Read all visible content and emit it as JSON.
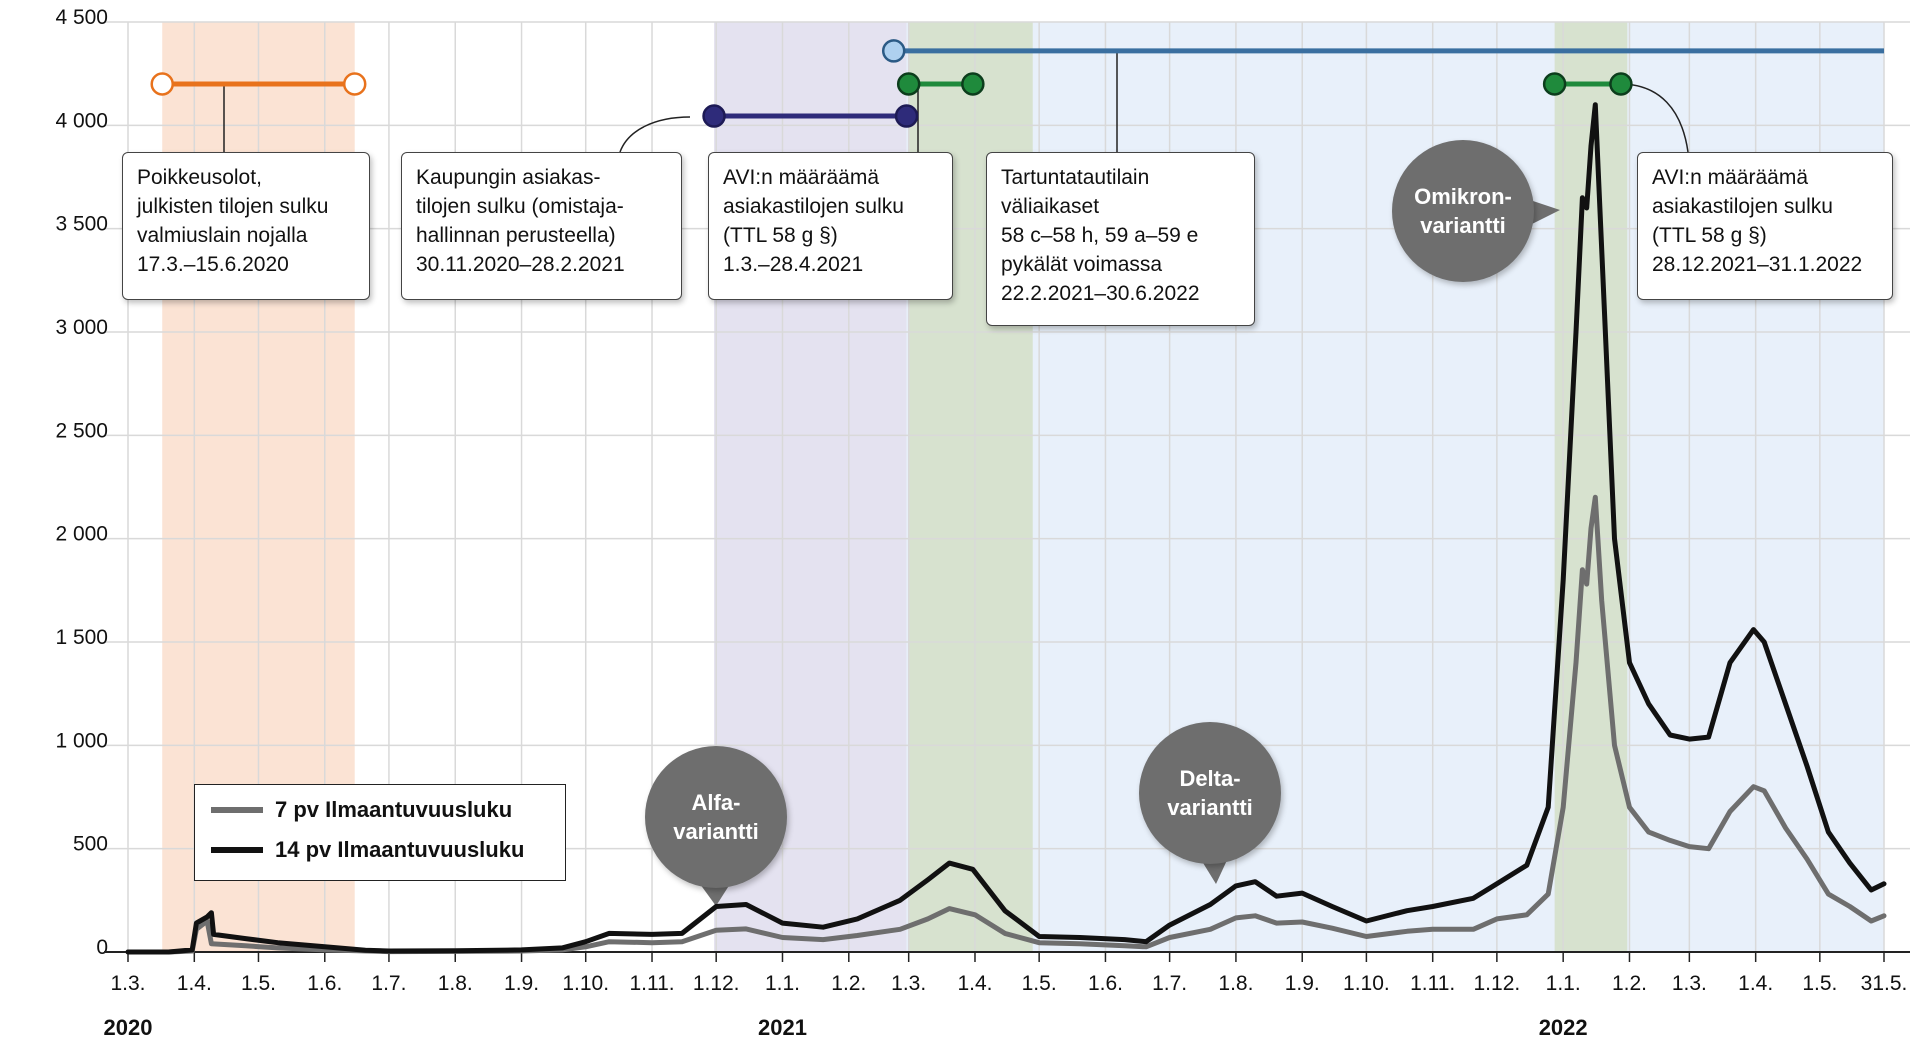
{
  "chart_data": {
    "type": "line",
    "title": "",
    "xlabel": "",
    "ylabel": "",
    "ylim": [
      0,
      4500
    ],
    "y_ticks": [
      "0",
      "500",
      "1 000",
      "1 500",
      "2 000",
      "2 500",
      "3 000",
      "3 500",
      "4 000",
      "4 500"
    ],
    "x_range": [
      "2020-03-01",
      "2022-05-31"
    ],
    "x_tick_dates": [
      "2020-03-01",
      "2020-04-01",
      "2020-05-01",
      "2020-06-01",
      "2020-07-01",
      "2020-08-01",
      "2020-09-01",
      "2020-10-01",
      "2020-11-01",
      "2020-12-01",
      "2021-01-01",
      "2021-02-01",
      "2021-03-01",
      "2021-04-01",
      "2021-05-01",
      "2021-06-01",
      "2021-07-01",
      "2021-08-01",
      "2021-09-01",
      "2021-10-01",
      "2021-11-01",
      "2021-12-01",
      "2022-01-01",
      "2022-02-01",
      "2022-03-01",
      "2022-04-01",
      "2022-05-01",
      "2022-05-31"
    ],
    "x_tick_labels": [
      "1.3.",
      "1.4.",
      "1.5.",
      "1.6.",
      "1.7.",
      "1.8.",
      "1.9.",
      "1.10.",
      "1.11.",
      "1.12.",
      "1.1.",
      "1.2.",
      "1.3.",
      "1.4.",
      "1.5.",
      "1.6.",
      "1.7.",
      "1.8.",
      "1.9.",
      "1.10.",
      "1.11.",
      "1.12.",
      "1.1.",
      "1.2.",
      "1.3.",
      "1.4.",
      "1.5.",
      "31.5."
    ],
    "year_labels": [
      {
        "date": "2020-03-01",
        "label": "2020"
      },
      {
        "date": "2021-01-01",
        "label": "2021"
      },
      {
        "date": "2022-01-01",
        "label": "2022"
      }
    ],
    "grid": true,
    "legend_position": "bottom-left",
    "series": [
      {
        "name": "7 pv Ilmaantuvuusluku",
        "color": "#6e6e6e",
        "points": [
          [
            "2020-03-01",
            0
          ],
          [
            "2020-03-20",
            0
          ],
          [
            "2020-03-31",
            5
          ],
          [
            "2020-04-02",
            110
          ],
          [
            "2020-04-07",
            150
          ],
          [
            "2020-04-09",
            40
          ],
          [
            "2020-04-25",
            30
          ],
          [
            "2020-05-10",
            20
          ],
          [
            "2020-06-01",
            10
          ],
          [
            "2020-07-01",
            2
          ],
          [
            "2020-08-01",
            3
          ],
          [
            "2020-09-01",
            5
          ],
          [
            "2020-09-20",
            10
          ],
          [
            "2020-10-01",
            25
          ],
          [
            "2020-10-12",
            50
          ],
          [
            "2020-11-01",
            45
          ],
          [
            "2020-11-15",
            50
          ],
          [
            "2020-12-01",
            105
          ],
          [
            "2020-12-15",
            112
          ],
          [
            "2021-01-01",
            70
          ],
          [
            "2021-01-20",
            60
          ],
          [
            "2021-02-05",
            80
          ],
          [
            "2021-02-25",
            110
          ],
          [
            "2021-03-10",
            160
          ],
          [
            "2021-03-20",
            210
          ],
          [
            "2021-04-01",
            180
          ],
          [
            "2021-04-15",
            90
          ],
          [
            "2021-05-01",
            45
          ],
          [
            "2021-05-20",
            40
          ],
          [
            "2021-06-10",
            30
          ],
          [
            "2021-06-20",
            25
          ],
          [
            "2021-07-01",
            70
          ],
          [
            "2021-07-20",
            110
          ],
          [
            "2021-08-01",
            165
          ],
          [
            "2021-08-10",
            175
          ],
          [
            "2021-08-20",
            140
          ],
          [
            "2021-09-01",
            145
          ],
          [
            "2021-09-15",
            115
          ],
          [
            "2021-10-01",
            75
          ],
          [
            "2021-10-20",
            100
          ],
          [
            "2021-11-01",
            110
          ],
          [
            "2021-11-20",
            110
          ],
          [
            "2021-12-01",
            160
          ],
          [
            "2021-12-15",
            180
          ],
          [
            "2021-12-25",
            280
          ],
          [
            "2022-01-01",
            700
          ],
          [
            "2022-01-07",
            1400
          ],
          [
            "2022-01-10",
            1850
          ],
          [
            "2022-01-12",
            1780
          ],
          [
            "2022-01-14",
            2050
          ],
          [
            "2022-01-16",
            2200
          ],
          [
            "2022-01-19",
            1700
          ],
          [
            "2022-01-25",
            1000
          ],
          [
            "2022-02-01",
            700
          ],
          [
            "2022-02-10",
            580
          ],
          [
            "2022-02-20",
            540
          ],
          [
            "2022-03-01",
            510
          ],
          [
            "2022-03-10",
            500
          ],
          [
            "2022-03-20",
            680
          ],
          [
            "2022-03-31",
            800
          ],
          [
            "2022-04-05",
            780
          ],
          [
            "2022-04-15",
            600
          ],
          [
            "2022-04-25",
            450
          ],
          [
            "2022-05-05",
            280
          ],
          [
            "2022-05-15",
            220
          ],
          [
            "2022-05-25",
            150
          ],
          [
            "2022-05-31",
            175
          ]
        ]
      },
      {
        "name": "14 pv Ilmaantuvuusluku",
        "color": "#111111",
        "points": [
          [
            "2020-03-01",
            0
          ],
          [
            "2020-03-20",
            0
          ],
          [
            "2020-03-31",
            10
          ],
          [
            "2020-04-02",
            140
          ],
          [
            "2020-04-07",
            170
          ],
          [
            "2020-04-09",
            190
          ],
          [
            "2020-04-10",
            85
          ],
          [
            "2020-04-25",
            65
          ],
          [
            "2020-05-10",
            45
          ],
          [
            "2020-06-01",
            25
          ],
          [
            "2020-06-20",
            8
          ],
          [
            "2020-07-01",
            5
          ],
          [
            "2020-08-01",
            6
          ],
          [
            "2020-09-01",
            10
          ],
          [
            "2020-09-20",
            20
          ],
          [
            "2020-10-01",
            50
          ],
          [
            "2020-10-12",
            90
          ],
          [
            "2020-11-01",
            85
          ],
          [
            "2020-11-15",
            90
          ],
          [
            "2020-12-01",
            220
          ],
          [
            "2020-12-15",
            230
          ],
          [
            "2021-01-01",
            140
          ],
          [
            "2021-01-20",
            120
          ],
          [
            "2021-02-05",
            160
          ],
          [
            "2021-02-25",
            250
          ],
          [
            "2021-03-10",
            350
          ],
          [
            "2021-03-20",
            430
          ],
          [
            "2021-03-31",
            400
          ],
          [
            "2021-04-15",
            200
          ],
          [
            "2021-05-01",
            75
          ],
          [
            "2021-05-20",
            70
          ],
          [
            "2021-06-10",
            60
          ],
          [
            "2021-06-20",
            50
          ],
          [
            "2021-07-01",
            130
          ],
          [
            "2021-07-20",
            230
          ],
          [
            "2021-08-01",
            320
          ],
          [
            "2021-08-10",
            340
          ],
          [
            "2021-08-20",
            270
          ],
          [
            "2021-09-01",
            285
          ],
          [
            "2021-09-15",
            220
          ],
          [
            "2021-10-01",
            150
          ],
          [
            "2021-10-20",
            200
          ],
          [
            "2021-11-01",
            220
          ],
          [
            "2021-11-20",
            260
          ],
          [
            "2021-12-01",
            330
          ],
          [
            "2021-12-15",
            420
          ],
          [
            "2021-12-25",
            700
          ],
          [
            "2022-01-01",
            1800
          ],
          [
            "2022-01-07",
            3000
          ],
          [
            "2022-01-10",
            3650
          ],
          [
            "2022-01-12",
            3600
          ],
          [
            "2022-01-14",
            3900
          ],
          [
            "2022-01-16",
            4100
          ],
          [
            "2022-01-19",
            3400
          ],
          [
            "2022-01-25",
            2000
          ],
          [
            "2022-02-01",
            1400
          ],
          [
            "2022-02-10",
            1200
          ],
          [
            "2022-02-20",
            1050
          ],
          [
            "2022-03-01",
            1030
          ],
          [
            "2022-03-10",
            1040
          ],
          [
            "2022-03-20",
            1400
          ],
          [
            "2022-03-31",
            1560
          ],
          [
            "2022-04-05",
            1500
          ],
          [
            "2022-04-15",
            1200
          ],
          [
            "2022-04-25",
            900
          ],
          [
            "2022-05-05",
            580
          ],
          [
            "2022-05-15",
            430
          ],
          [
            "2022-05-25",
            300
          ],
          [
            "2022-05-31",
            330
          ]
        ]
      }
    ],
    "shaded_periods": [
      {
        "start": "2020-03-17",
        "end": "2020-06-15",
        "color": "#fbe3d4"
      },
      {
        "start": "2020-11-30",
        "end": "2021-02-28",
        "color": "#e4e2f0"
      },
      {
        "start": "2021-02-28",
        "end": "2022-05-31",
        "color": "#e8f0fa"
      },
      {
        "start": "2021-03-01",
        "end": "2021-04-28",
        "color": "#d7e2cf"
      },
      {
        "start": "2021-12-28",
        "end": "2022-01-31",
        "color": "#d7e2cf"
      }
    ],
    "period_markers": [
      {
        "start": "2020-03-17",
        "end": "2020-06-15",
        "y": 4200,
        "color": "#e8721c",
        "style": "open"
      },
      {
        "start": "2020-11-30",
        "end": "2021-02-28",
        "y": 4045,
        "color": "#2e2b7a",
        "style": "filled"
      },
      {
        "start": "2021-02-22",
        "end": "2022-05-31",
        "y": 4360,
        "color": "#3a6fa0",
        "style": "open-start"
      },
      {
        "start": "2021-03-01",
        "end": "2021-03-31",
        "y": 4200,
        "color": "#1f8a3c",
        "style": "filled"
      },
      {
        "start": "2021-12-28",
        "end": "2022-01-28",
        "y": 4200,
        "color": "#1f8a3c",
        "style": "filled"
      }
    ],
    "annotations": [
      {
        "lines": [
          "Poikkeusolot,",
          "julkisten tilojen sulku",
          "valmiuslain nojalla",
          "17.3.–15.6.2020"
        ]
      },
      {
        "lines": [
          "Kaupungin asiakas-",
          "tilojen sulku (omistaja-",
          "hallinnan perusteella)",
          "30.11.2020–28.2.2021"
        ]
      },
      {
        "lines": [
          "AVI:n määräämä",
          "asiakastilojen sulku",
          "(TTL 58 g §)",
          "1.3.–28.4.2021"
        ]
      },
      {
        "lines": [
          "Tartuntatautilain",
          "väliaikaset",
          "58 c–58 h, 59 a–59 e",
          "pykälät voimassa",
          "22.2.2021–30.6.2022"
        ]
      },
      {
        "lines": [
          "AVI:n määräämä",
          "asiakastilojen sulku",
          "(TTL 58 g §)",
          "28.12.2021–31.1.2022"
        ]
      }
    ],
    "variant_labels": [
      {
        "lines": [
          "Alfa-",
          "variantti"
        ]
      },
      {
        "lines": [
          "Delta-",
          "variantti"
        ]
      },
      {
        "lines": [
          "Omikron-",
          "variantti"
        ]
      }
    ]
  }
}
